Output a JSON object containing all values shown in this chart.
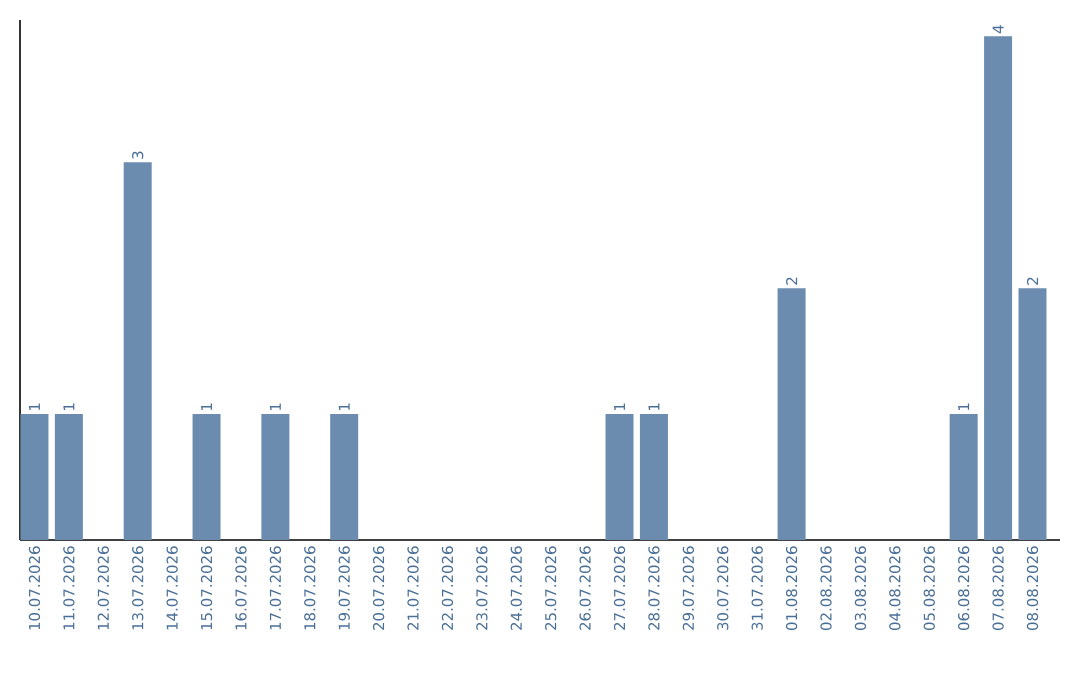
{
  "chart_data": {
    "type": "bar",
    "categories": [
      "10.07.2026",
      "11.07.2026",
      "12.07.2026",
      "13.07.2026",
      "14.07.2026",
      "15.07.2026",
      "16.07.2026",
      "17.07.2026",
      "18.07.2026",
      "19.07.2026",
      "20.07.2026",
      "21.07.2026",
      "22.07.2026",
      "23.07.2026",
      "24.07.2026",
      "25.07.2026",
      "26.07.2026",
      "27.07.2026",
      "28.07.2026",
      "29.07.2026",
      "30.07.2026",
      "31.07.2026",
      "01.08.2026",
      "02.08.2026",
      "03.08.2026",
      "04.08.2026",
      "05.08.2026",
      "06.08.2026",
      "07.08.2026",
      "08.08.2026"
    ],
    "values": [
      1,
      1,
      0,
      3,
      0,
      1,
      0,
      1,
      0,
      1,
      0,
      0,
      0,
      0,
      0,
      0,
      0,
      1,
      1,
      0,
      0,
      0,
      2,
      0,
      0,
      0,
      0,
      1,
      4,
      2
    ],
    "value_labels": [
      "1",
      "1",
      null,
      "3",
      null,
      "1",
      null,
      "1",
      null,
      "1",
      null,
      null,
      null,
      null,
      null,
      null,
      null,
      "1",
      "1",
      null,
      null,
      null,
      "2",
      null,
      null,
      null,
      null,
      "1",
      "4",
      "2"
    ],
    "color": "#6b8cae",
    "ylim": [
      0,
      4.13
    ],
    "tick_labels": "x",
    "grid": false
  }
}
